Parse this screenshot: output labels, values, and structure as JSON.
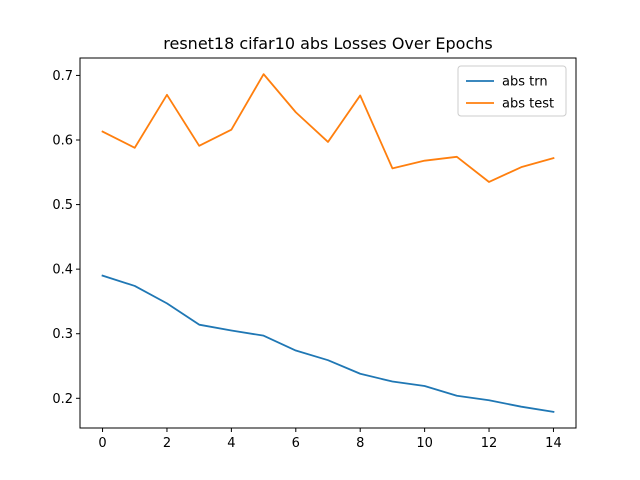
{
  "chart_data": {
    "type": "line",
    "title": "resnet18 cifar10 abs Losses Over Epochs",
    "xlabel": "",
    "ylabel": "",
    "x": [
      0,
      1,
      2,
      3,
      4,
      5,
      6,
      7,
      8,
      9,
      10,
      11,
      12,
      13,
      14
    ],
    "xlim": [
      -0.7,
      14.7
    ],
    "ylim": [
      0.154,
      0.727
    ],
    "xticks": [
      0,
      2,
      4,
      6,
      8,
      10,
      12,
      14
    ],
    "yticks": [
      0.2,
      0.3,
      0.4,
      0.5,
      0.6,
      0.7
    ],
    "xtick_labels": [
      "0",
      "2",
      "4",
      "6",
      "8",
      "10",
      "12",
      "14"
    ],
    "ytick_labels": [
      "0.2",
      "0.3",
      "0.4",
      "0.5",
      "0.6",
      "0.7"
    ],
    "grid": false,
    "legend_position": "top-right",
    "series": [
      {
        "name": "abs trn",
        "color": "#1f77b4",
        "values": [
          0.39,
          0.374,
          0.347,
          0.314,
          0.305,
          0.297,
          0.274,
          0.259,
          0.238,
          0.226,
          0.219,
          0.204,
          0.197,
          0.187,
          0.179
        ]
      },
      {
        "name": "abs test",
        "color": "#ff7f0e",
        "values": [
          0.613,
          0.588,
          0.67,
          0.591,
          0.616,
          0.702,
          0.643,
          0.597,
          0.669,
          0.556,
          0.568,
          0.574,
          0.535,
          0.558,
          0.572
        ]
      }
    ]
  }
}
